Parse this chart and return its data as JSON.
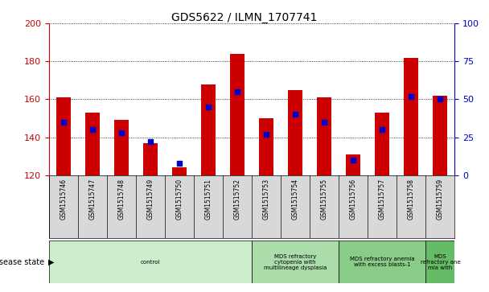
{
  "title": "GDS5622 / ILMN_1707741",
  "samples": [
    "GSM1515746",
    "GSM1515747",
    "GSM1515748",
    "GSM1515749",
    "GSM1515750",
    "GSM1515751",
    "GSM1515752",
    "GSM1515753",
    "GSM1515754",
    "GSM1515755",
    "GSM1515756",
    "GSM1515757",
    "GSM1515758",
    "GSM1515759"
  ],
  "count_values": [
    161,
    153,
    149,
    137,
    124,
    168,
    184,
    150,
    165,
    161,
    131,
    153,
    182,
    162
  ],
  "percentile_values": [
    35,
    30,
    28,
    22,
    8,
    45,
    55,
    27,
    40,
    35,
    10,
    30,
    52,
    50
  ],
  "ylim_left": [
    120,
    200
  ],
  "ylim_right": [
    0,
    100
  ],
  "yticks_left": [
    120,
    140,
    160,
    180,
    200
  ],
  "yticks_right": [
    0,
    25,
    50,
    75,
    100
  ],
  "bar_color": "#cc0000",
  "dot_color": "#0000cc",
  "background_color": "#ffffff",
  "axis_color_left": "#cc0000",
  "axis_color_right": "#0000cc",
  "disease_groups": [
    {
      "label": "control",
      "start": 0,
      "end": 6,
      "color": "#cceecc"
    },
    {
      "label": "MDS refractory\ncytopenia with\nmultilineage dysplasia",
      "start": 7,
      "end": 9,
      "color": "#aaddaa"
    },
    {
      "label": "MDS refractory anemia\nwith excess blasts-1",
      "start": 10,
      "end": 12,
      "color": "#88cc88"
    },
    {
      "label": "MDS\nrefractory ane\nmia with",
      "start": 13,
      "end": 13,
      "color": "#66bb66"
    }
  ],
  "disease_state_label": "disease state",
  "bar_width": 0.5,
  "figsize": [
    6.08,
    3.63
  ],
  "dpi": 100
}
